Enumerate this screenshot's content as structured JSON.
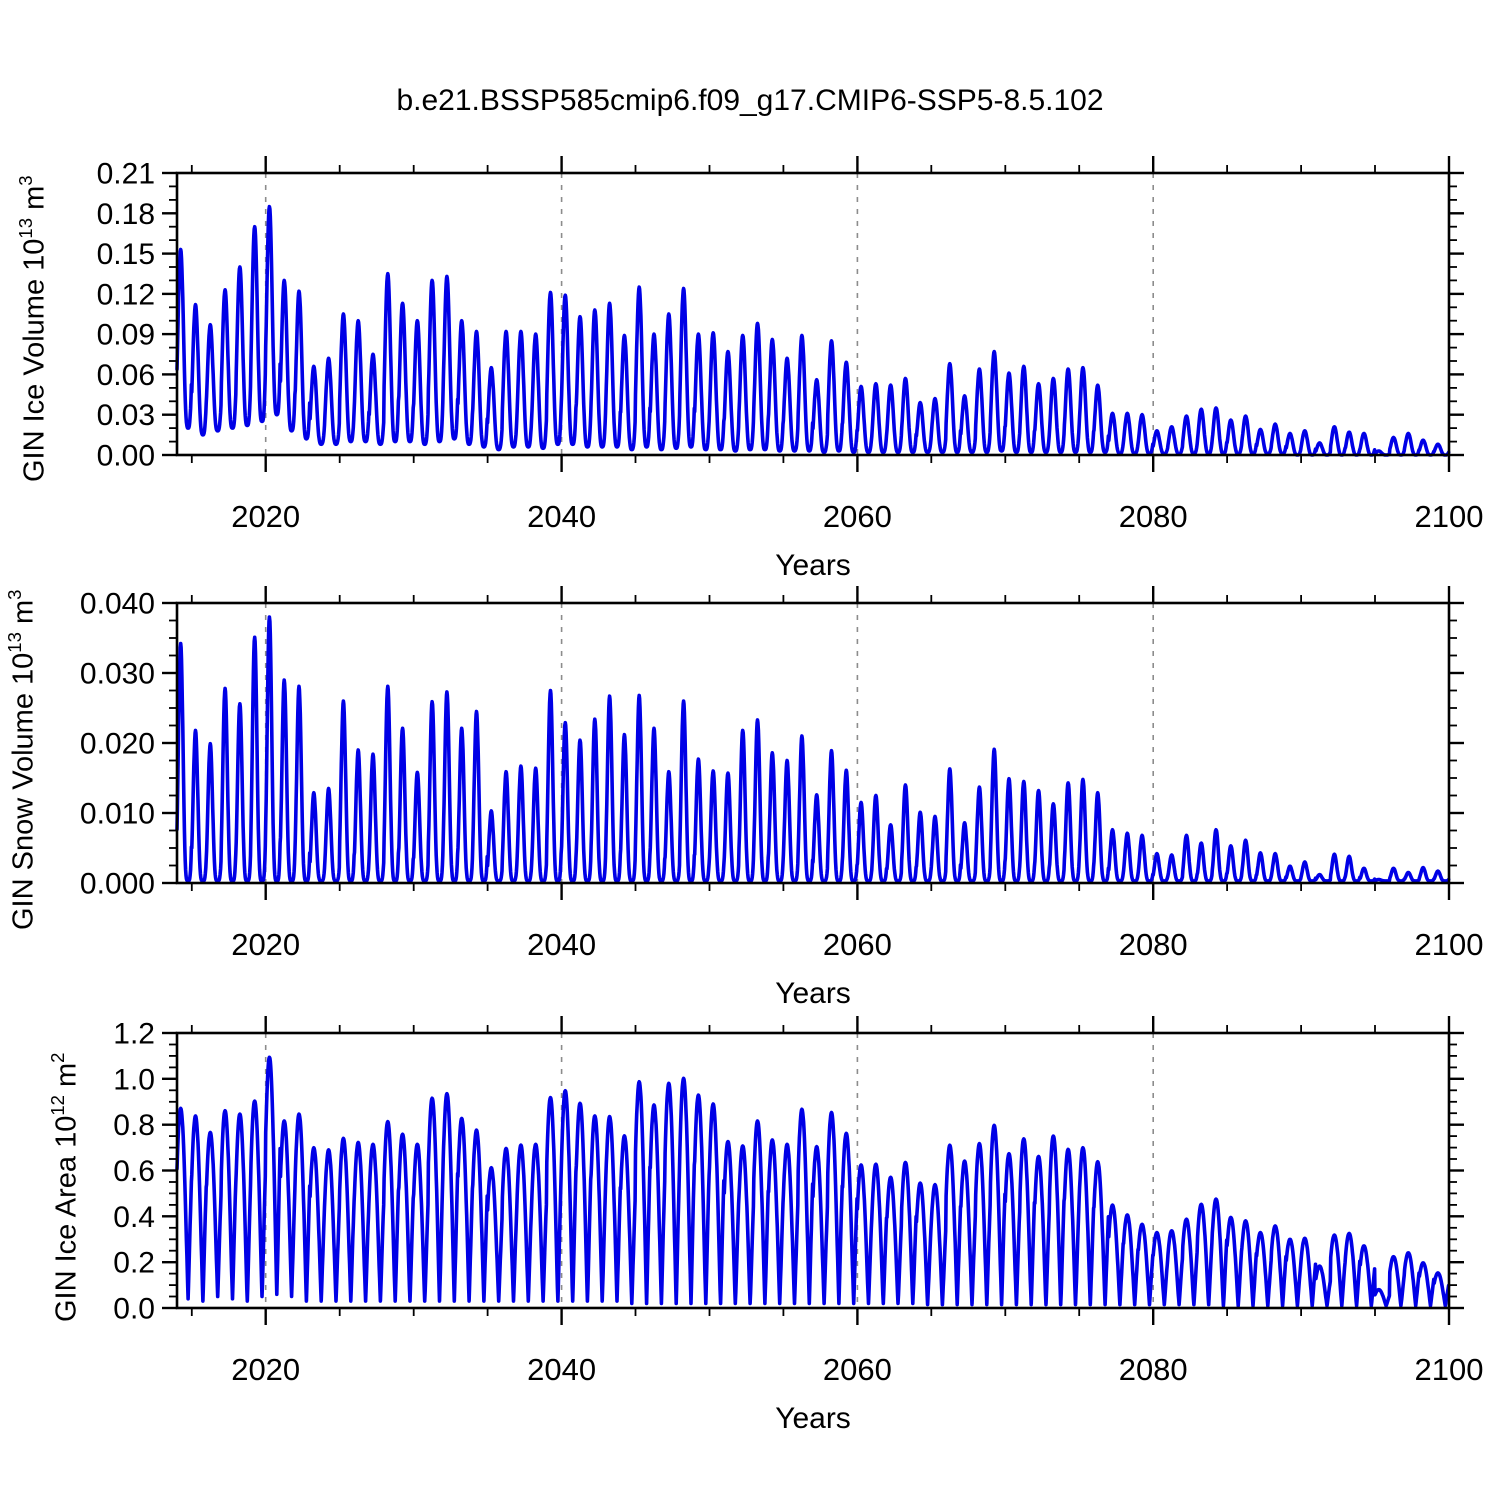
{
  "title": "b.e21.BSSP585cmip6.f09_g17.CMIP6-SSP5-8.5.102",
  "figure": {
    "background": "#ffffff",
    "axis_color": "#000000",
    "grid_color": "#8c8c8c",
    "line_color": "#0000e6"
  },
  "xaxis": {
    "label": "Years",
    "range": [
      2014,
      2100
    ],
    "tick_labels": [
      "2020",
      "2040",
      "2060",
      "2080",
      "2100"
    ],
    "tick_values": [
      2020,
      2040,
      2060,
      2080,
      2100
    ],
    "minor_step": 5,
    "grid_years": [
      2020,
      2040,
      2060,
      2080
    ],
    "grid_style": "dashed"
  },
  "chart_data": [
    {
      "type": "line",
      "name": "gin-ice-volume",
      "ylabel_parts": {
        "base": "GIN Ice Volume 10",
        "exp": "13",
        "unit": " m",
        "unit_exp": "3"
      },
      "ylim": [
        0.0,
        0.21
      ],
      "ytick_labels": [
        "0.00",
        "0.03",
        "0.06",
        "0.09",
        "0.12",
        "0.15",
        "0.18",
        "0.21"
      ],
      "ytick_values": [
        0.0,
        0.03,
        0.06,
        0.09,
        0.12,
        0.15,
        0.18,
        0.21
      ],
      "yminor_step": 0.01,
      "yminor_divisions": 3,
      "seasonality": "annual cycle, maximum in late winter/spring, minimum in early autumn",
      "year_start": 2014,
      "annual_max": [
        0.153,
        0.112,
        0.097,
        0.123,
        0.14,
        0.17,
        0.185,
        0.13,
        0.122,
        0.066,
        0.072,
        0.105,
        0.1,
        0.075,
        0.135,
        0.113,
        0.1,
        0.13,
        0.133,
        0.1,
        0.092,
        0.065,
        0.092,
        0.092,
        0.09,
        0.121,
        0.119,
        0.103,
        0.108,
        0.113,
        0.089,
        0.125,
        0.09,
        0.105,
        0.124,
        0.09,
        0.091,
        0.077,
        0.089,
        0.098,
        0.086,
        0.072,
        0.089,
        0.056,
        0.085,
        0.069,
        0.051,
        0.053,
        0.052,
        0.057,
        0.039,
        0.042,
        0.068,
        0.044,
        0.064,
        0.077,
        0.061,
        0.066,
        0.053,
        0.057,
        0.064,
        0.065,
        0.052,
        0.031,
        0.031,
        0.03,
        0.018,
        0.021,
        0.029,
        0.034,
        0.035,
        0.026,
        0.029,
        0.019,
        0.023,
        0.016,
        0.018,
        0.009,
        0.021,
        0.017,
        0.016,
        0.003,
        0.013,
        0.016,
        0.011,
        0.008
      ],
      "annual_min": [
        0.02,
        0.015,
        0.018,
        0.02,
        0.022,
        0.025,
        0.03,
        0.018,
        0.012,
        0.008,
        0.008,
        0.01,
        0.01,
        0.008,
        0.01,
        0.01,
        0.008,
        0.01,
        0.012,
        0.008,
        0.006,
        0.004,
        0.006,
        0.006,
        0.005,
        0.008,
        0.008,
        0.006,
        0.006,
        0.006,
        0.004,
        0.006,
        0.004,
        0.005,
        0.006,
        0.004,
        0.004,
        0.003,
        0.004,
        0.004,
        0.003,
        0.003,
        0.003,
        0.002,
        0.003,
        0.002,
        0.002,
        0.002,
        0.002,
        0.002,
        0.002,
        0.002,
        0.002,
        0.002,
        0.002,
        0.003,
        0.002,
        0.002,
        0.002,
        0.002,
        0.002,
        0.002,
        0.002,
        0.001,
        0.001,
        0.001,
        0.001,
        0.001,
        0.001,
        0.001,
        0.001,
        0.001,
        0.001,
        0.001,
        0.001,
        0.0,
        0.0,
        0.0,
        0.0,
        0.0,
        0.0,
        0.0,
        0.0,
        0.0,
        0.0,
        0.0
      ]
    },
    {
      "type": "line",
      "name": "gin-snow-volume",
      "ylabel_parts": {
        "base": "GIN Snow Volume 10",
        "exp": "13",
        "unit": " m",
        "unit_exp": "3"
      },
      "ylim": [
        0.0,
        0.04
      ],
      "ytick_labels": [
        "0.000",
        "0.010",
        "0.020",
        "0.030",
        "0.040"
      ],
      "ytick_values": [
        0.0,
        0.01,
        0.02,
        0.03,
        0.04
      ],
      "yminor_step": 0.0025,
      "yminor_divisions": 4,
      "seasonality": "annual cycle, sharp spring maxima, near-zero summer minima",
      "year_start": 2014,
      "annual_max": [
        0.0342,
        0.0218,
        0.0199,
        0.0278,
        0.0256,
        0.0351,
        0.038,
        0.029,
        0.0281,
        0.0129,
        0.0135,
        0.026,
        0.019,
        0.0184,
        0.0281,
        0.0221,
        0.0158,
        0.0259,
        0.0273,
        0.0221,
        0.0245,
        0.0103,
        0.0159,
        0.0167,
        0.0164,
        0.0275,
        0.0229,
        0.0204,
        0.0234,
        0.0267,
        0.0212,
        0.0268,
        0.0221,
        0.0159,
        0.026,
        0.0177,
        0.016,
        0.0157,
        0.0218,
        0.0233,
        0.0186,
        0.0175,
        0.021,
        0.0126,
        0.0189,
        0.0161,
        0.0115,
        0.0125,
        0.0083,
        0.014,
        0.0101,
        0.0095,
        0.0163,
        0.0086,
        0.0137,
        0.0191,
        0.0149,
        0.0145,
        0.0132,
        0.0113,
        0.0143,
        0.0148,
        0.0129,
        0.0076,
        0.0071,
        0.0068,
        0.0042,
        0.004,
        0.0068,
        0.0057,
        0.0076,
        0.0053,
        0.0061,
        0.0043,
        0.0042,
        0.0024,
        0.003,
        0.0012,
        0.0041,
        0.0038,
        0.0021,
        0.0005,
        0.0021,
        0.0015,
        0.0022,
        0.0017
      ],
      "annual_min": 0.0003
    },
    {
      "type": "line",
      "name": "gin-ice-area",
      "ylabel_parts": {
        "base": "GIN Ice Area 10",
        "exp": "12",
        "unit": " m",
        "unit_exp": "2"
      },
      "ylim": [
        0.0,
        1.2
      ],
      "ytick_labels": [
        "0.0",
        "0.2",
        "0.4",
        "0.6",
        "0.8",
        "1.0",
        "1.2"
      ],
      "ytick_values": [
        0.0,
        0.2,
        0.4,
        0.6,
        0.8,
        1.0,
        1.2
      ],
      "yminor_step": 0.05,
      "yminor_divisions": 4,
      "seasonality": "annual cycle, broad winter maxima, narrow summer minima",
      "year_start": 2014,
      "annual_max": [
        0.871,
        0.838,
        0.766,
        0.861,
        0.846,
        0.903,
        1.094,
        0.816,
        0.846,
        0.699,
        0.69,
        0.74,
        0.722,
        0.714,
        0.813,
        0.758,
        0.714,
        0.915,
        0.935,
        0.827,
        0.776,
        0.612,
        0.696,
        0.711,
        0.714,
        0.918,
        0.948,
        0.893,
        0.838,
        0.835,
        0.751,
        0.987,
        0.886,
        0.98,
        1.002,
        0.929,
        0.89,
        0.726,
        0.707,
        0.816,
        0.733,
        0.714,
        0.867,
        0.704,
        0.853,
        0.762,
        0.624,
        0.627,
        0.57,
        0.635,
        0.545,
        0.538,
        0.71,
        0.641,
        0.717,
        0.797,
        0.673,
        0.738,
        0.661,
        0.75,
        0.692,
        0.699,
        0.638,
        0.449,
        0.406,
        0.365,
        0.329,
        0.337,
        0.387,
        0.452,
        0.475,
        0.395,
        0.38,
        0.329,
        0.358,
        0.3,
        0.304,
        0.183,
        0.318,
        0.325,
        0.271,
        0.08,
        0.224,
        0.241,
        0.197,
        0.153
      ],
      "annual_min": [
        0.04,
        0.03,
        0.05,
        0.04,
        0.03,
        0.05,
        0.06,
        0.05,
        0.03,
        0.03,
        0.03,
        0.03,
        0.03,
        0.03,
        0.03,
        0.03,
        0.03,
        0.03,
        0.03,
        0.03,
        0.03,
        0.03,
        0.03,
        0.03,
        0.03,
        0.03,
        0.03,
        0.03,
        0.03,
        0.03,
        0.02,
        0.02,
        0.02,
        0.02,
        0.02,
        0.02,
        0.02,
        0.02,
        0.02,
        0.02,
        0.02,
        0.02,
        0.02,
        0.02,
        0.02,
        0.02,
        0.02,
        0.02,
        0.02,
        0.02,
        0.015,
        0.015,
        0.015,
        0.015,
        0.015,
        0.015,
        0.015,
        0.015,
        0.015,
        0.015,
        0.015,
        0.015,
        0.015,
        0.015,
        0.015,
        0.015,
        0.015,
        0.015,
        0.015,
        0.015,
        0.01,
        0.01,
        0.01,
        0.01,
        0.01,
        0.01,
        0.01,
        0.01,
        0.01,
        0.01,
        0.01,
        0.01,
        0.01,
        0.01,
        0.01,
        0.01
      ]
    }
  ]
}
